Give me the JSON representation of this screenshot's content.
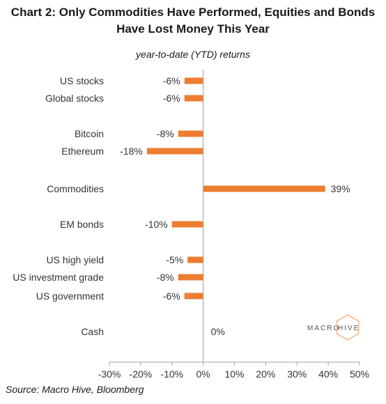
{
  "chart_data": {
    "type": "bar",
    "orientation": "horizontal",
    "title_line1": "Chart 2: Only Commodities Have Performed, Equities and Bonds",
    "title_line2": "Have Lost Money This Year",
    "subtitle": "year-to-date (YTD) returns",
    "source": "Source: Macro Hive, Bloomberg",
    "categories": [
      "US stocks",
      "Global stocks",
      "Bitcoin",
      "Ethereum",
      "Commodities",
      "EM bonds",
      "US high yield",
      "US investment grade",
      "US government",
      "Cash"
    ],
    "values": [
      -6,
      -6,
      -8,
      -18,
      39,
      -10,
      -5,
      -8,
      -6,
      0
    ],
    "value_labels": [
      "-6%",
      "-6%",
      "-8%",
      "-18%",
      "39%",
      "-10%",
      "-5%",
      "-8%",
      "-6%",
      "0%"
    ],
    "xlim": [
      -30,
      50
    ],
    "x_ticks": [
      -30,
      -20,
      -10,
      0,
      10,
      20,
      30,
      40,
      50
    ],
    "x_tick_labels": [
      "-30%",
      "-20%",
      "-10%",
      "0%",
      "10%",
      "20%",
      "30%",
      "40%",
      "50%"
    ],
    "bar_color": "#ED7D31",
    "grid": false
  },
  "logo": {
    "left": "MACRO",
    "right": "HIVE",
    "accent_color": "#F4B183"
  }
}
